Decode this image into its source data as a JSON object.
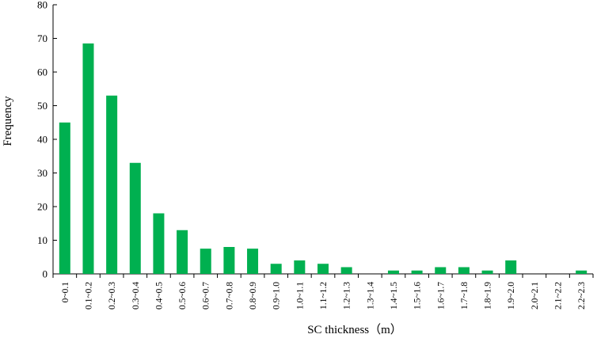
{
  "chart_data": {
    "type": "bar",
    "title": "",
    "xlabel": "SC thickness（m）",
    "ylabel": "Frequency",
    "ylim": [
      0,
      80
    ],
    "yticks": [
      0,
      10,
      20,
      30,
      40,
      50,
      60,
      70,
      80
    ],
    "grid": false,
    "bar_color": "#00b050",
    "categories": [
      "0~0.1",
      "0.1~0.2",
      "0.2~0.3",
      "0.3~0.4",
      "0.4~0.5",
      "0.5~0.6",
      "0.6~0.7",
      "0.7~0.8",
      "0.8~0.9",
      "0.9~1.0",
      "1.0~1.1",
      "1.1~1.2",
      "1.2~1.3",
      "1.3~1.4",
      "1.4~1.5",
      "1.5~1.6",
      "1.6~1.7",
      "1.7~1.8",
      "1.8~1.9",
      "1.9~2.0",
      "2.0~2.1",
      "2.1~2.2",
      "2.2~2.3"
    ],
    "values": [
      45,
      68.5,
      53,
      33,
      18,
      13,
      7.5,
      8,
      7.5,
      3,
      4,
      3,
      2,
      0,
      1,
      1,
      2,
      2,
      1,
      4,
      0,
      0,
      1
    ]
  }
}
